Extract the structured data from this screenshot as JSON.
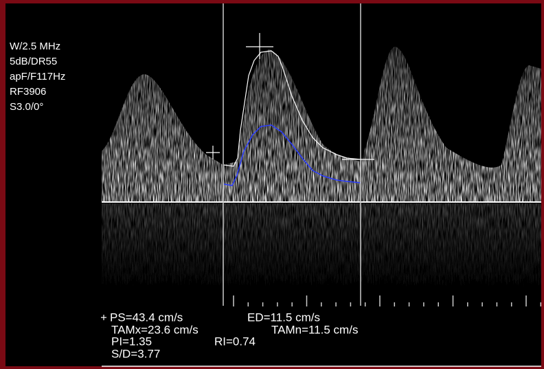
{
  "settings": [
    "W/2.5 MHz",
    "5dB/DR55",
    "apF/F117Hz",
    "RF3906",
    "S3.0/0°"
  ],
  "measurements": {
    "ps": "PS=43.4 cm/s",
    "ed": "ED=11.5 cm/s",
    "tamx": "TAMx=23.6 cm/s",
    "tamn": "TAMn=11.5 cm/s",
    "pi": "PI=1.35",
    "ri": "RI=0.74",
    "sd": "S/D=3.77"
  }
}
